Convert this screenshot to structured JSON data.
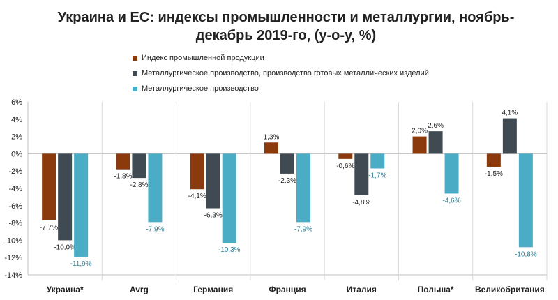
{
  "chart_data": {
    "type": "bar",
    "title_line1": "Украина и ЕС: индексы промышленности и металлургии, ноябрь-",
    "title_line2": "декабрь 2019-го, (y-o-y, %)",
    "categories": [
      "Украина*",
      "Avrg",
      "Германия",
      "Франция",
      "Италия",
      "Польша*",
      "Великобритания"
    ],
    "series": [
      {
        "name": "Индекс промышленной продукции",
        "color": "#8B3A0E",
        "values": [
          -7.7,
          -1.8,
          -4.1,
          1.3,
          -0.6,
          2.0,
          -1.5
        ],
        "labels": [
          "-7,7%",
          "-1,8%",
          "-4,1%",
          "1,3%",
          "-0,6%",
          "2,0%",
          "-1,5%"
        ]
      },
      {
        "name": "Металлургическое производство, производство  готовых металлических изделий",
        "color": "#3F4A52",
        "values": [
          -10.0,
          -2.8,
          -6.3,
          -2.3,
          -4.8,
          2.6,
          4.1
        ],
        "labels": [
          "-10,0%",
          "-2,8%",
          "-6,3%",
          "-2,3%",
          "-4,8%",
          "2,6%",
          "4,1%"
        ]
      },
      {
        "name": "Металлургическое производство",
        "color": "#4BACC6",
        "values": [
          -11.9,
          -7.9,
          -10.3,
          -7.9,
          -1.7,
          -4.6,
          -10.8
        ],
        "labels": [
          "-11,9%",
          "-7,9%",
          "-10,3%",
          "-7,9%",
          "-1,7%",
          "-4,6%",
          "-10,8%"
        ]
      }
    ],
    "ylim": [
      -14,
      6
    ],
    "yticks": [
      6,
      4,
      2,
      0,
      -2,
      -4,
      -6,
      -8,
      -10,
      -12,
      -14
    ],
    "ytick_labels": [
      "6%",
      "4%",
      "2%",
      "0%",
      "-2%",
      "-4%",
      "-6%",
      "-8%",
      "-10%",
      "-12%",
      "-14%"
    ],
    "grid": "vertical-separators",
    "legend_position": "top"
  }
}
